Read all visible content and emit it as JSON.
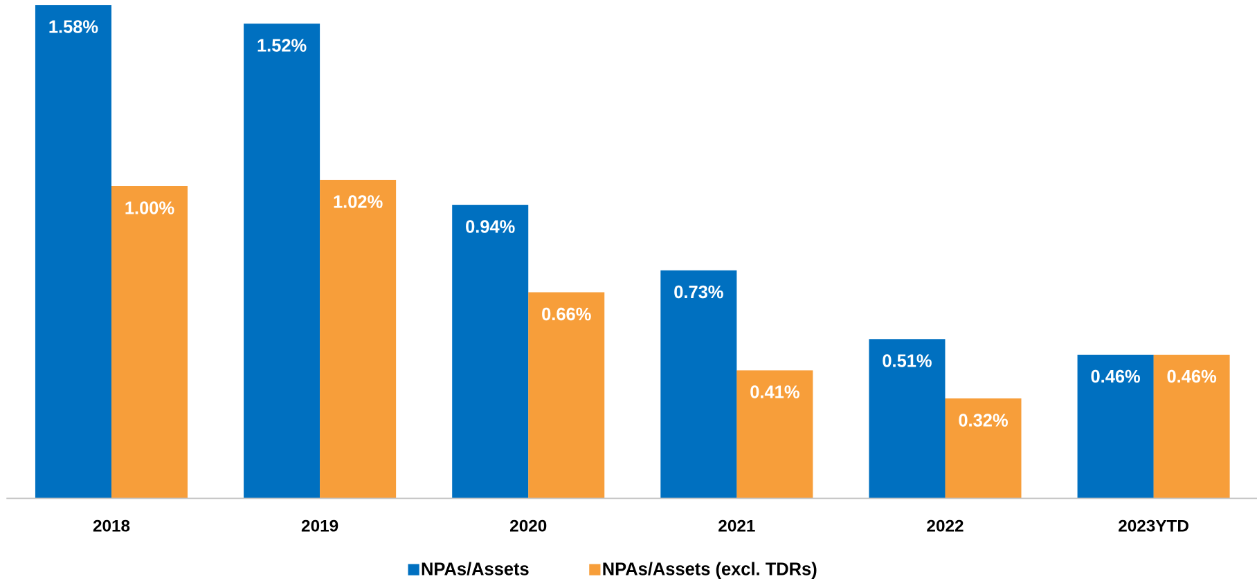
{
  "chart_data": {
    "type": "bar",
    "categories": [
      "2018",
      "2019",
      "2020",
      "2021",
      "2022",
      "2023YTD"
    ],
    "series": [
      {
        "name": "NPAs/Assets",
        "color": "#0070c0",
        "values": [
          1.58,
          1.52,
          0.94,
          0.73,
          0.51,
          0.46
        ],
        "value_labels": [
          "1.58%",
          "1.52%",
          "0.94%",
          "0.73%",
          "0.51%",
          "0.46%"
        ]
      },
      {
        "name": "NPAs/Assets (excl. TDRs)",
        "color": "#f79e3a",
        "values": [
          1.0,
          1.02,
          0.66,
          0.41,
          0.32,
          0.46
        ],
        "value_labels": [
          "1.00%",
          "1.02%",
          "0.66%",
          "0.41%",
          "0.32%",
          "0.46%"
        ]
      }
    ],
    "legend": "bottom"
  }
}
